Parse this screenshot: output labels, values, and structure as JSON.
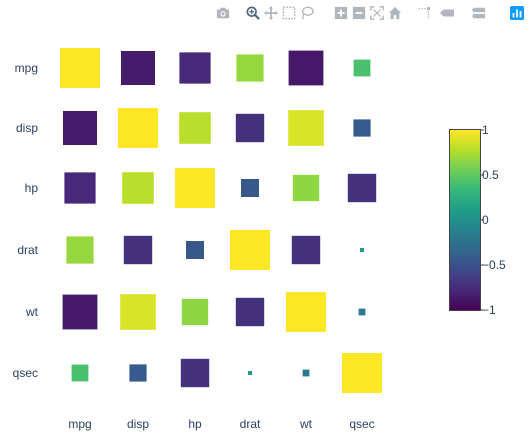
{
  "modebar": {
    "buttons": [
      {
        "name": "camera-icon",
        "label": "Download plot as a png"
      },
      {
        "name": "zoom-icon",
        "label": "Zoom"
      },
      {
        "name": "pan-icon",
        "label": "Pan"
      },
      {
        "name": "box-select-icon",
        "label": "Box Select"
      },
      {
        "name": "lasso-select-icon",
        "label": "Lasso Select"
      },
      {
        "name": "zoom-in-icon",
        "label": "Zoom in"
      },
      {
        "name": "zoom-out-icon",
        "label": "Zoom out"
      },
      {
        "name": "autoscale-icon",
        "label": "Autoscale"
      },
      {
        "name": "reset-axes-icon",
        "label": "Reset axes"
      },
      {
        "name": "spike-lines-icon",
        "label": "Toggle Spike Lines"
      },
      {
        "name": "hover-closest-icon",
        "label": "Show closest data on hover"
      },
      {
        "name": "hover-compare-icon",
        "label": "Compare data on hover"
      },
      {
        "name": "plotly-logo-icon",
        "label": "Produced with Plotly"
      }
    ],
    "active_color": "#506784",
    "inactive_color": "#b0b6bd"
  },
  "chart_data": {
    "type": "heatmap",
    "title": "",
    "xlabel": "",
    "ylabel": "",
    "variables": [
      "mpg",
      "disp",
      "hp",
      "drat",
      "wt",
      "qsec"
    ],
    "matrix": [
      [
        1.0,
        -0.85,
        -0.78,
        0.68,
        -0.87,
        0.42
      ],
      [
        -0.85,
        1.0,
        0.79,
        -0.71,
        0.89,
        -0.43
      ],
      [
        -0.78,
        0.79,
        1.0,
        -0.45,
        0.66,
        -0.71
      ],
      [
        0.68,
        -0.71,
        -0.45,
        1.0,
        -0.71,
        0.09
      ],
      [
        -0.87,
        0.89,
        0.66,
        -0.71,
        1.0,
        -0.17
      ],
      [
        0.42,
        -0.43,
        -0.71,
        0.09,
        -0.17,
        1.0
      ]
    ],
    "marker": "square sized by absolute value",
    "colorscale": "viridis",
    "colorscale_stops": [
      "#440154",
      "#482878",
      "#3e4989",
      "#31688e",
      "#26828e",
      "#1f9e89",
      "#35b779",
      "#6ece58",
      "#b5de2b",
      "#fde725"
    ],
    "colorbar": {
      "range": [
        -1,
        1
      ],
      "ticks": [
        1,
        0.5,
        0,
        -0.5,
        -1
      ],
      "tick_labels": [
        "1",
        "0.5",
        "0",
        "−0.5",
        "−1"
      ],
      "position": "right"
    },
    "grid": false,
    "axis_text_color": "#2a3f5f"
  }
}
